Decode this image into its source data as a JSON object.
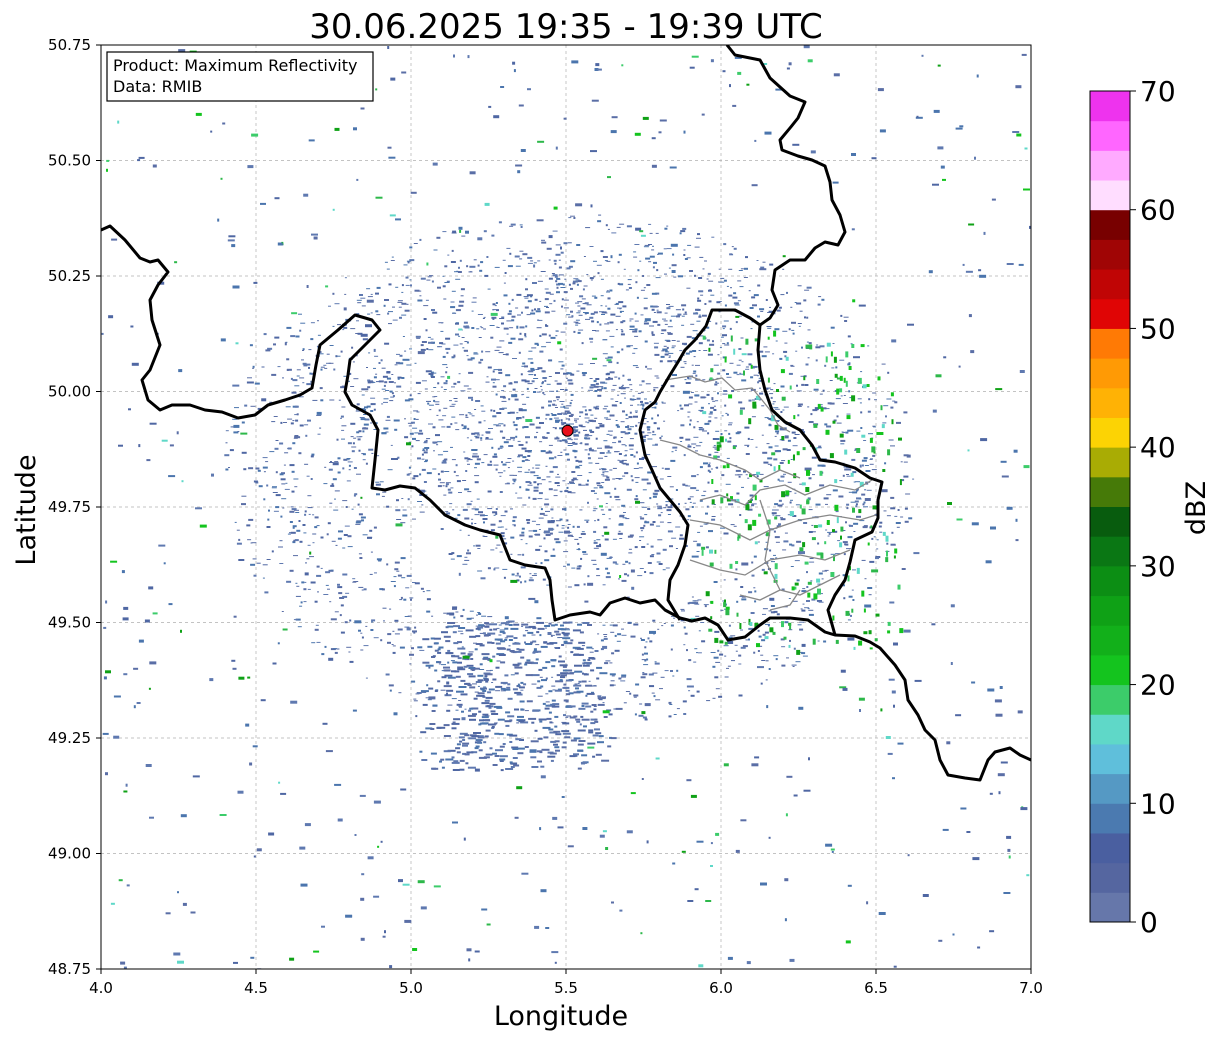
{
  "title": "30.06.2025 19:35 - 19:39 UTC",
  "info_box": {
    "line1": "Product: Maximum Reflectivity",
    "line2": "Data: RMIB"
  },
  "chart_data": {
    "type": "heatmap",
    "title": "30.06.2025 19:35 - 19:39 UTC",
    "xlabel": "Longitude",
    "ylabel": "Latitude",
    "xlim": [
      4.0,
      7.0
    ],
    "ylim": [
      48.75,
      50.75
    ],
    "xticks": [
      "4.0",
      "4.5",
      "5.0",
      "5.5",
      "6.0",
      "6.5",
      "7.0"
    ],
    "yticks": [
      "48.75",
      "49.00",
      "49.25",
      "49.50",
      "49.75",
      "50.00",
      "50.25",
      "50.50",
      "50.75"
    ],
    "grid": true,
    "radar_site": {
      "lon": 5.505,
      "lat": 49.915
    },
    "colorbar": {
      "label": "dBZ",
      "ticks": [
        "0",
        "10",
        "20",
        "30",
        "40",
        "50",
        "60",
        "70"
      ],
      "min": 0,
      "max": 70,
      "step": 2.5,
      "colors": [
        "#6677aa",
        "#5566a0",
        "#4a5fa0",
        "#4b7ab0",
        "#5599c4",
        "#5fbfdb",
        "#5fd8c8",
        "#3ccc6a",
        "#14c41e",
        "#12b01a",
        "#0fa116",
        "#0c8e14",
        "#0a7714",
        "#085c0e",
        "#467a08",
        "#a9ac04",
        "#fcd304",
        "#ffb205",
        "#ff9a05",
        "#ff7a05",
        "#e00505",
        "#c00505",
        "#a00505",
        "#780000",
        "#ffddff",
        "#ffaaff",
        "#ff66ff",
        "#ee33ee"
      ]
    }
  }
}
